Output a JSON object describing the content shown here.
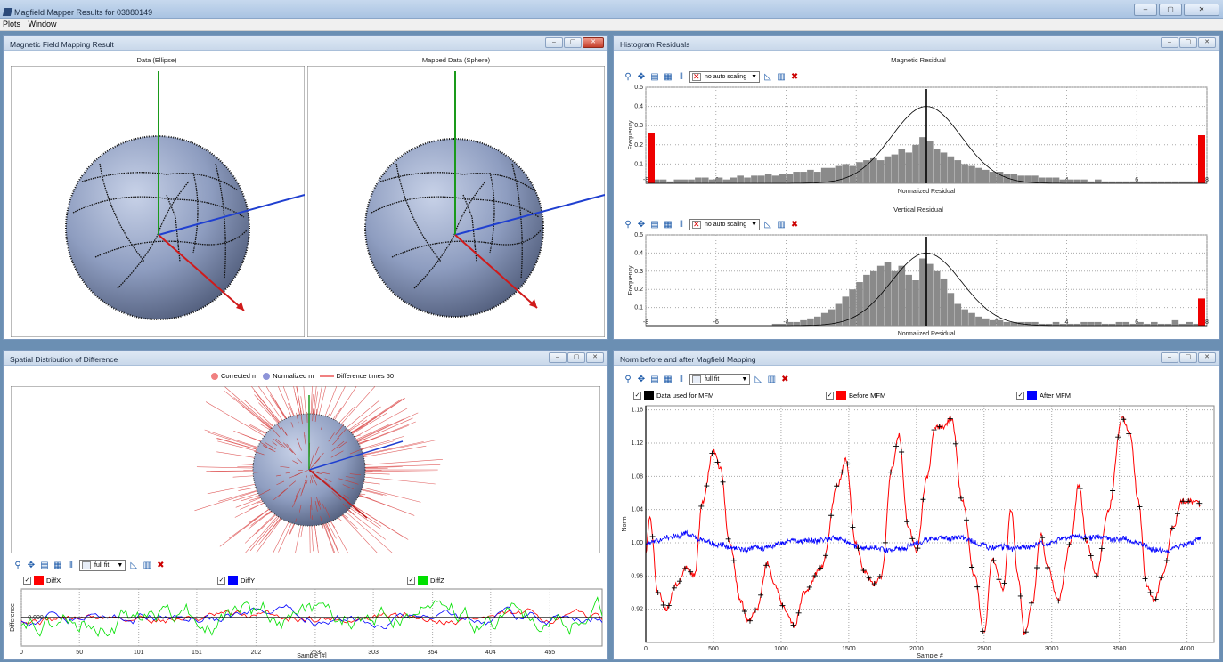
{
  "window": {
    "title": "Magfield Mapper Results for 03880149",
    "btn_min": "–",
    "btn_max": "▢",
    "btn_close": "✕"
  },
  "menu": {
    "items": [
      "Plots",
      "Window"
    ]
  },
  "panels": {
    "mapping": {
      "title": "Magnetic Field Mapping Result",
      "left_label": "Data (Ellipse)",
      "right_label": "Mapped Data (Sphere)"
    },
    "histogram": {
      "title": "Histogram Residuals",
      "combo_label": "no auto scaling",
      "magnetic": {
        "title": "Magnetic Residual",
        "xlabel": "Normalized Residual",
        "ylabel": "Frequency"
      },
      "vertical": {
        "title": "Vertical Residual",
        "xlabel": "Normalized Residual",
        "ylabel": "Frequency"
      }
    },
    "spatial": {
      "title": "Spatial Distribution of Difference",
      "legend": {
        "corrected": "Corrected m",
        "normalized": "Normalized m",
        "difference": "Difference times 50"
      },
      "combo_label": "full fit",
      "series": [
        {
          "name": "DiffX",
          "color": "#ff0000"
        },
        {
          "name": "DiffY",
          "color": "#0000ff"
        },
        {
          "name": "DiffZ",
          "color": "#00e000"
        }
      ],
      "ylabel": "Difference",
      "xlabel": "Sample [#]",
      "y_tick": "0.000"
    },
    "norm": {
      "title": "Norm before and after Magfield Mapping",
      "combo_label": "full fit",
      "series": [
        {
          "name": "Data used for MFM",
          "color": "#000000"
        },
        {
          "name": "Before MFM",
          "color": "#ff0000"
        },
        {
          "name": "After MFM",
          "color": "#0000ff"
        }
      ],
      "ylabel": "Norm",
      "xlabel": "Sample #"
    }
  },
  "chart_data": [
    {
      "type": "bar",
      "title": "Magnetic Residual",
      "xlabel": "Normalized Residual",
      "ylabel": "Frequency",
      "xlim": [
        -8,
        8
      ],
      "ylim": [
        0,
        0.5
      ],
      "x_ticks": [
        -8,
        -6,
        -4,
        -2,
        0,
        2,
        4,
        6,
        8
      ],
      "y_ticks": [
        0.1,
        0.2,
        0.3,
        0.4,
        0.5
      ],
      "bin_width": 0.2,
      "values": [
        0.26,
        0.02,
        0.02,
        0.01,
        0.02,
        0.02,
        0.02,
        0.03,
        0.03,
        0.02,
        0.03,
        0.02,
        0.03,
        0.04,
        0.03,
        0.04,
        0.04,
        0.05,
        0.04,
        0.05,
        0.05,
        0.06,
        0.06,
        0.07,
        0.06,
        0.08,
        0.08,
        0.09,
        0.1,
        0.09,
        0.11,
        0.12,
        0.13,
        0.12,
        0.14,
        0.15,
        0.18,
        0.16,
        0.2,
        0.24,
        0.22,
        0.18,
        0.16,
        0.14,
        0.12,
        0.1,
        0.09,
        0.08,
        0.07,
        0.06,
        0.06,
        0.05,
        0.05,
        0.04,
        0.04,
        0.04,
        0.03,
        0.03,
        0.03,
        0.02,
        0.02,
        0.02,
        0.02,
        0.01,
        0.02,
        0.01,
        0.01,
        0.01,
        0.01,
        0.01,
        0.01,
        0.01,
        0.01,
        0.01,
        0.01,
        0.01,
        0.01,
        0.01,
        0.01,
        0.25
      ],
      "edge_bins": {
        "left": 0.26,
        "right": 0.25
      },
      "normal_peak": 0.4
    },
    {
      "type": "bar",
      "title": "Vertical Residual",
      "xlabel": "Normalized Residual",
      "ylabel": "Frequency",
      "xlim": [
        -8,
        8
      ],
      "ylim": [
        0,
        0.5
      ],
      "x_ticks": [
        -8,
        -6,
        -4,
        -2,
        0,
        2,
        4,
        6,
        8
      ],
      "y_ticks": [
        0.1,
        0.2,
        0.3,
        0.4,
        0.5
      ],
      "bin_width": 0.2,
      "values": [
        0,
        0,
        0,
        0,
        0,
        0,
        0,
        0,
        0,
        0,
        0,
        0,
        0,
        0,
        0,
        0,
        0,
        0,
        0.01,
        0.01,
        0.02,
        0.02,
        0.03,
        0.04,
        0.05,
        0.07,
        0.09,
        0.12,
        0.16,
        0.2,
        0.24,
        0.28,
        0.3,
        0.33,
        0.35,
        0.3,
        0.33,
        0.28,
        0.25,
        0.37,
        0.34,
        0.3,
        0.26,
        0.18,
        0.12,
        0.09,
        0.07,
        0.05,
        0.04,
        0.03,
        0.03,
        0.02,
        0.02,
        0.02,
        0.02,
        0.02,
        0.01,
        0.01,
        0.02,
        0.01,
        0.01,
        0.01,
        0.02,
        0.02,
        0.02,
        0.01,
        0.01,
        0.02,
        0.02,
        0.01,
        0.02,
        0.01,
        0.02,
        0.01,
        0.01,
        0.03,
        0.01,
        0.02,
        0.01,
        0.15
      ],
      "edge_bins": {
        "left": 0,
        "right": 0.15
      },
      "normal_peak": 0.4
    },
    {
      "type": "line",
      "title": "",
      "xlabel": "Sample #",
      "ylabel": "Norm",
      "xlim": [
        0,
        4200
      ],
      "ylim": [
        0.88,
        1.165
      ],
      "x_ticks": [
        0,
        500,
        1000,
        1500,
        2000,
        2500,
        3000,
        3500,
        4000
      ],
      "y_ticks": [
        0.92,
        0.96,
        1.0,
        1.04,
        1.08,
        1.12,
        1.16
      ],
      "before_keypoints": [
        [
          0,
          0.99
        ],
        [
          30,
          1.03
        ],
        [
          90,
          0.94
        ],
        [
          150,
          0.92
        ],
        [
          230,
          0.95
        ],
        [
          300,
          0.97
        ],
        [
          360,
          0.96
        ],
        [
          420,
          1.05
        ],
        [
          500,
          1.11
        ],
        [
          550,
          1.09
        ],
        [
          620,
          1.0
        ],
        [
          700,
          0.93
        ],
        [
          760,
          0.905
        ],
        [
          820,
          0.92
        ],
        [
          900,
          0.975
        ],
        [
          950,
          0.95
        ],
        [
          1030,
          0.92
        ],
        [
          1100,
          0.9
        ],
        [
          1170,
          0.94
        ],
        [
          1300,
          0.97
        ],
        [
          1420,
          1.07
        ],
        [
          1480,
          1.1
        ],
        [
          1550,
          1.0
        ],
        [
          1620,
          0.965
        ],
        [
          1680,
          0.95
        ],
        [
          1740,
          0.96
        ],
        [
          1820,
          1.09
        ],
        [
          1870,
          1.13
        ],
        [
          1940,
          1.02
        ],
        [
          2000,
          0.99
        ],
        [
          2080,
          1.08
        ],
        [
          2140,
          1.14
        ],
        [
          2200,
          1.14
        ],
        [
          2260,
          1.15
        ],
        [
          2340,
          1.05
        ],
        [
          2430,
          0.96
        ],
        [
          2500,
          0.89
        ],
        [
          2560,
          0.98
        ],
        [
          2640,
          0.945
        ],
        [
          2700,
          1.04
        ],
        [
          2750,
          0.96
        ],
        [
          2800,
          0.89
        ],
        [
          2860,
          0.93
        ],
        [
          2920,
          1.01
        ],
        [
          2970,
          0.97
        ],
        [
          3050,
          0.93
        ],
        [
          3140,
          1.0
        ],
        [
          3200,
          1.07
        ],
        [
          3260,
          1.0
        ],
        [
          3330,
          0.96
        ],
        [
          3420,
          1.04
        ],
        [
          3520,
          1.15
        ],
        [
          3580,
          1.13
        ],
        [
          3640,
          1.05
        ],
        [
          3700,
          0.95
        ],
        [
          3760,
          0.93
        ],
        [
          3820,
          0.96
        ],
        [
          3900,
          1.02
        ],
        [
          3960,
          1.05
        ],
        [
          4080,
          1.05
        ],
        [
          4100,
          1.045
        ]
      ],
      "after_level": 1.0,
      "after_noise": 0.004,
      "markers_every": 40
    },
    {
      "type": "line",
      "title": "",
      "xlabel": "Sample [#]",
      "ylabel": "Difference",
      "xlim": [
        0,
        500
      ],
      "ylim": [
        -1,
        1
      ],
      "x_ticks": [
        0,
        50,
        101,
        151,
        202,
        253,
        303,
        354,
        404,
        455
      ],
      "series": [
        {
          "name": "DiffX",
          "color": "#ff0000",
          "amp": 0.25
        },
        {
          "name": "DiffY",
          "color": "#0000ff",
          "amp": 0.3
        },
        {
          "name": "DiffZ",
          "color": "#00e000",
          "amp": 0.6
        }
      ]
    }
  ]
}
